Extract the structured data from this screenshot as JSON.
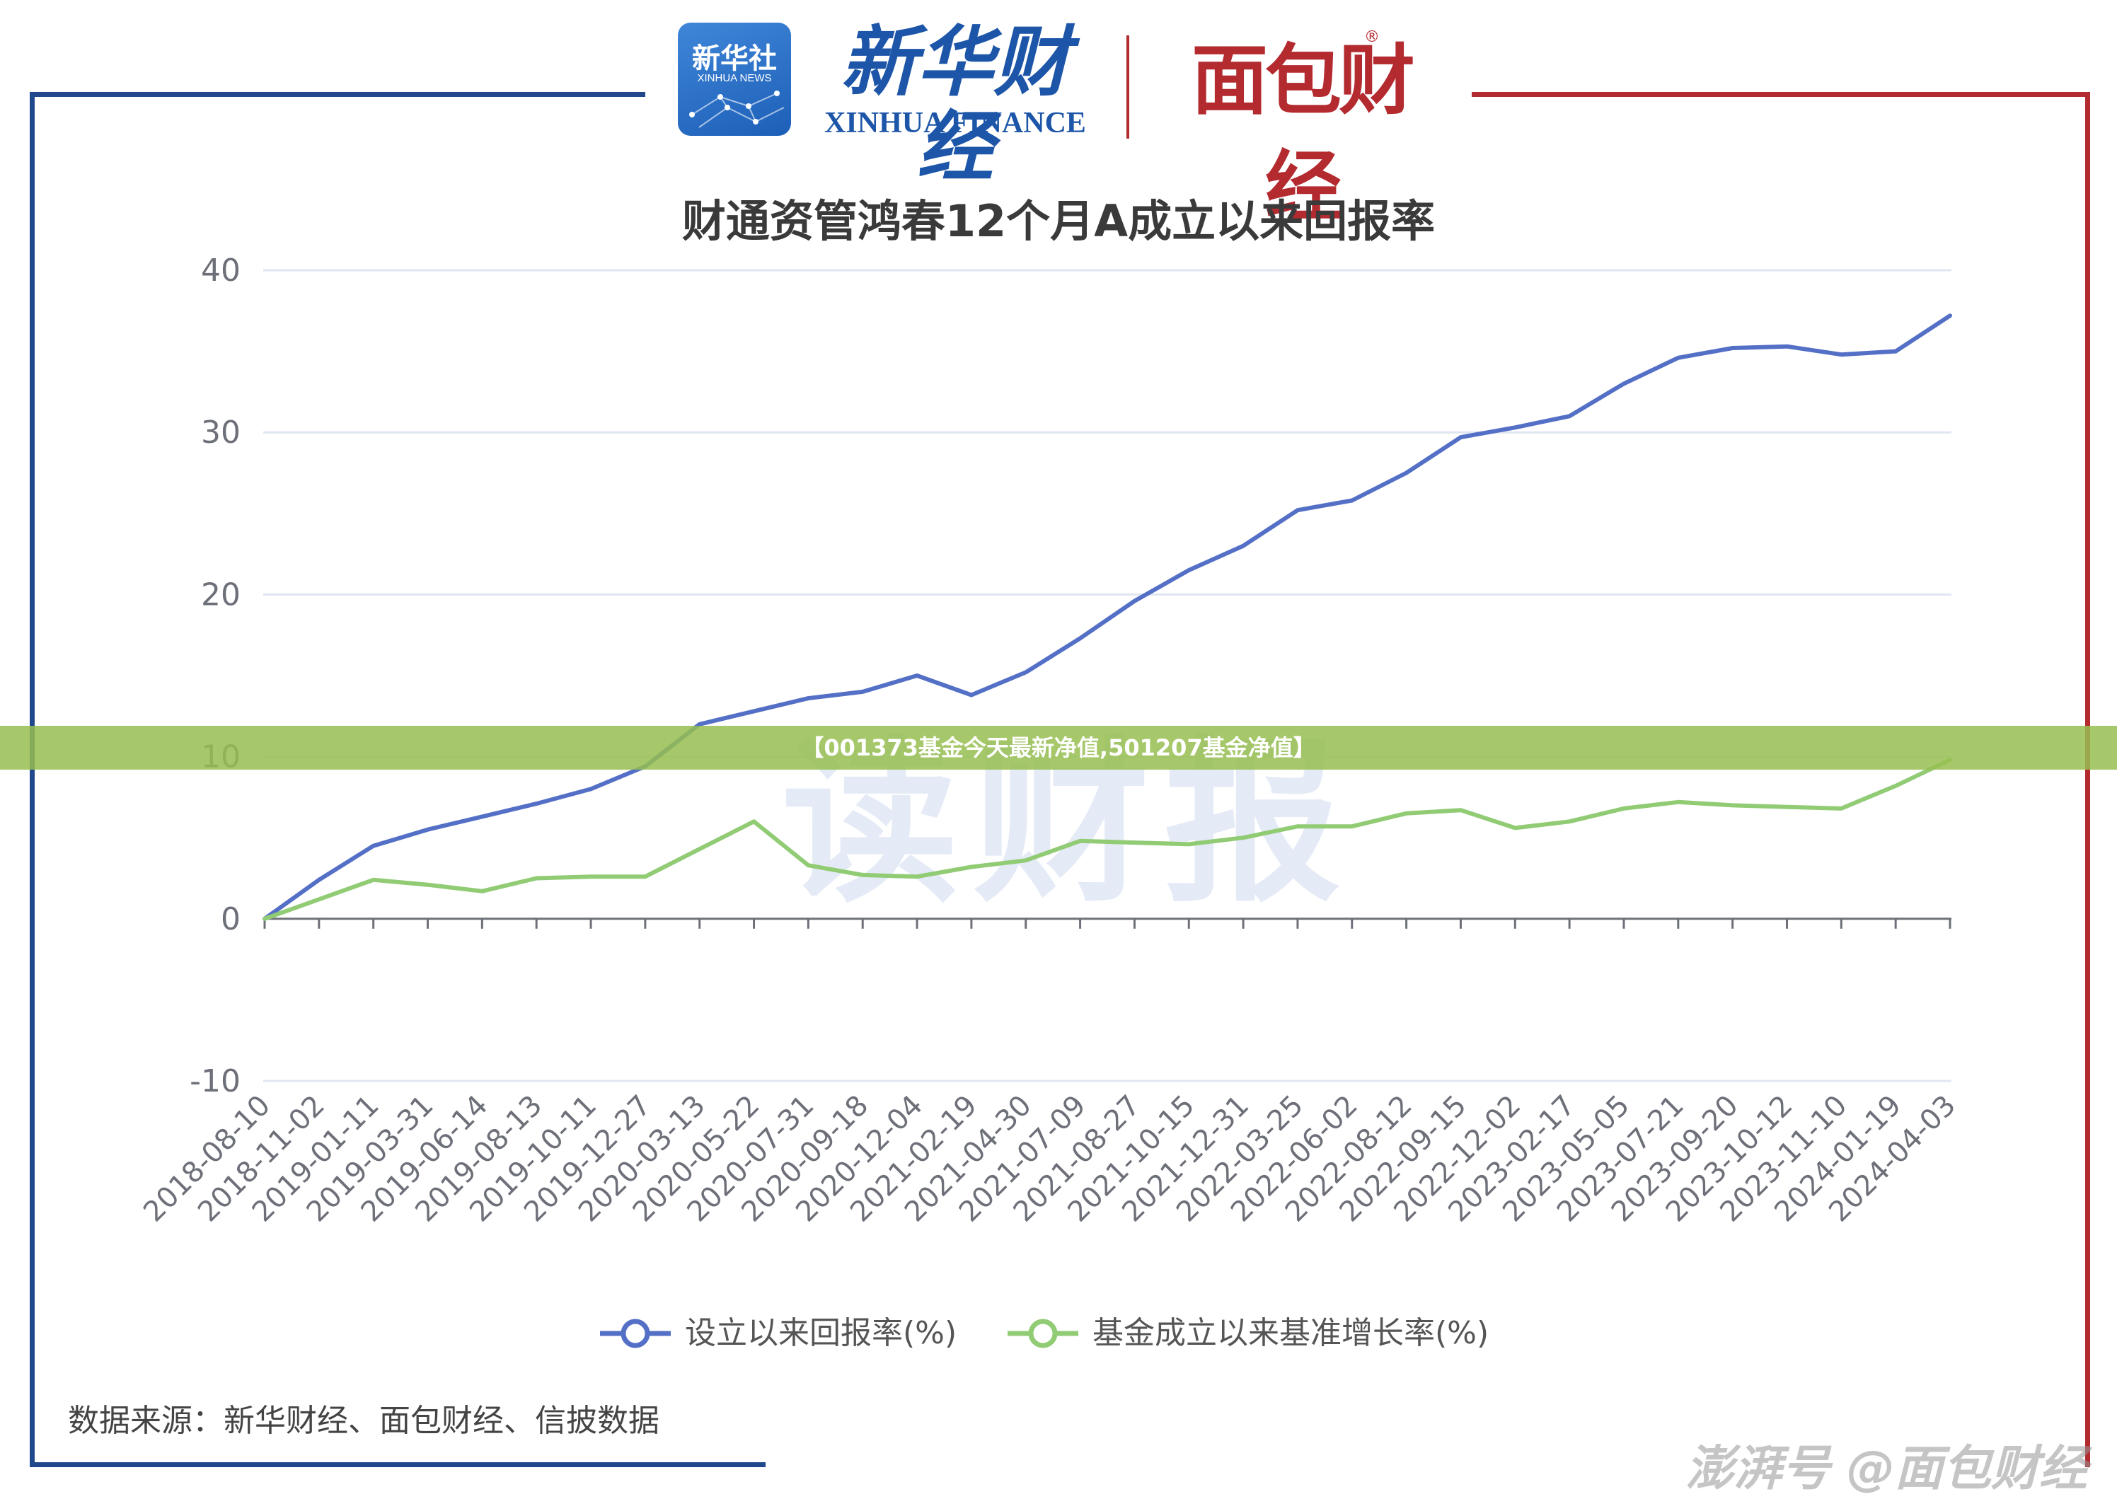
{
  "header": {
    "xinhua_news_logo_cn": "新华社",
    "xinhua_news_logo_en": "XINHUA NEWS",
    "xinhua_finance_cn": "新华财经",
    "xinhua_finance_en": "XINHUA FINANCE",
    "mianbao_logo": "面包财经",
    "registered_mark": "®"
  },
  "overlay_banner": "【001373基金今天最新净值,501207基金净值】",
  "watermark": "读财报",
  "source_note": "数据来源：新华财经、面包财经、信披数据",
  "corner_watermark": "澎湃号 @面包财经",
  "colors": {
    "series_1": "#5470c6",
    "series_2": "#91cc75",
    "gridline": "#e0e6f1",
    "axis": "#6e7079",
    "frame_blue": "#21488c",
    "frame_red": "#b32a2f"
  },
  "chart_data": {
    "type": "line",
    "title": "财通资管鸿春12个月A成立以来回报率",
    "xlabel": "",
    "ylabel": "",
    "ylim": [
      -10,
      40
    ],
    "yticks": [
      "40",
      "30",
      "20",
      "10",
      "0",
      "-10"
    ],
    "grid": true,
    "legend_position": "bottom",
    "x_tick_labels": [
      "2018-08-10",
      "2018-11-02",
      "2019-01-11",
      "2019-03-31",
      "2019-06-14",
      "2019-08-13",
      "2019-10-11",
      "2019-12-27",
      "2020-03-13",
      "2020-05-22",
      "2020-07-31",
      "2020-09-18",
      "2020-12-04",
      "2021-02-19",
      "2021-04-30",
      "2021-07-09",
      "2021-08-27",
      "2021-10-15",
      "2021-12-31",
      "2022-03-25",
      "2022-06-02",
      "2022-08-12",
      "2022-09-15",
      "2022-12-02",
      "2023-02-17",
      "2023-05-05",
      "2023-07-21",
      "2023-09-20",
      "2023-10-12",
      "2023-11-10",
      "2024-01-19",
      "2024-04-03"
    ],
    "series": [
      {
        "name": "设立以来回报率(%)",
        "values": [
          0.0,
          2.4,
          4.5,
          5.5,
          6.3,
          7.1,
          8.0,
          9.4,
          12.0,
          12.8,
          13.6,
          14.0,
          15.0,
          13.8,
          15.2,
          17.3,
          19.6,
          21.5,
          23.0,
          25.2,
          25.8,
          27.5,
          29.7,
          30.3,
          31.0,
          33.0,
          34.6,
          35.2,
          35.3,
          34.8,
          35.0,
          37.2
        ]
      },
      {
        "name": "基金成立以来基准增长率(%)",
        "values": [
          0.0,
          1.2,
          2.4,
          2.1,
          1.7,
          2.5,
          2.6,
          2.6,
          4.3,
          6.0,
          3.3,
          2.7,
          2.6,
          3.2,
          3.6,
          4.8,
          4.7,
          4.6,
          5.0,
          5.7,
          5.7,
          6.5,
          6.7,
          5.6,
          6.0,
          6.8,
          7.2,
          7.0,
          6.9,
          6.8,
          8.2,
          9.8
        ]
      }
    ]
  }
}
